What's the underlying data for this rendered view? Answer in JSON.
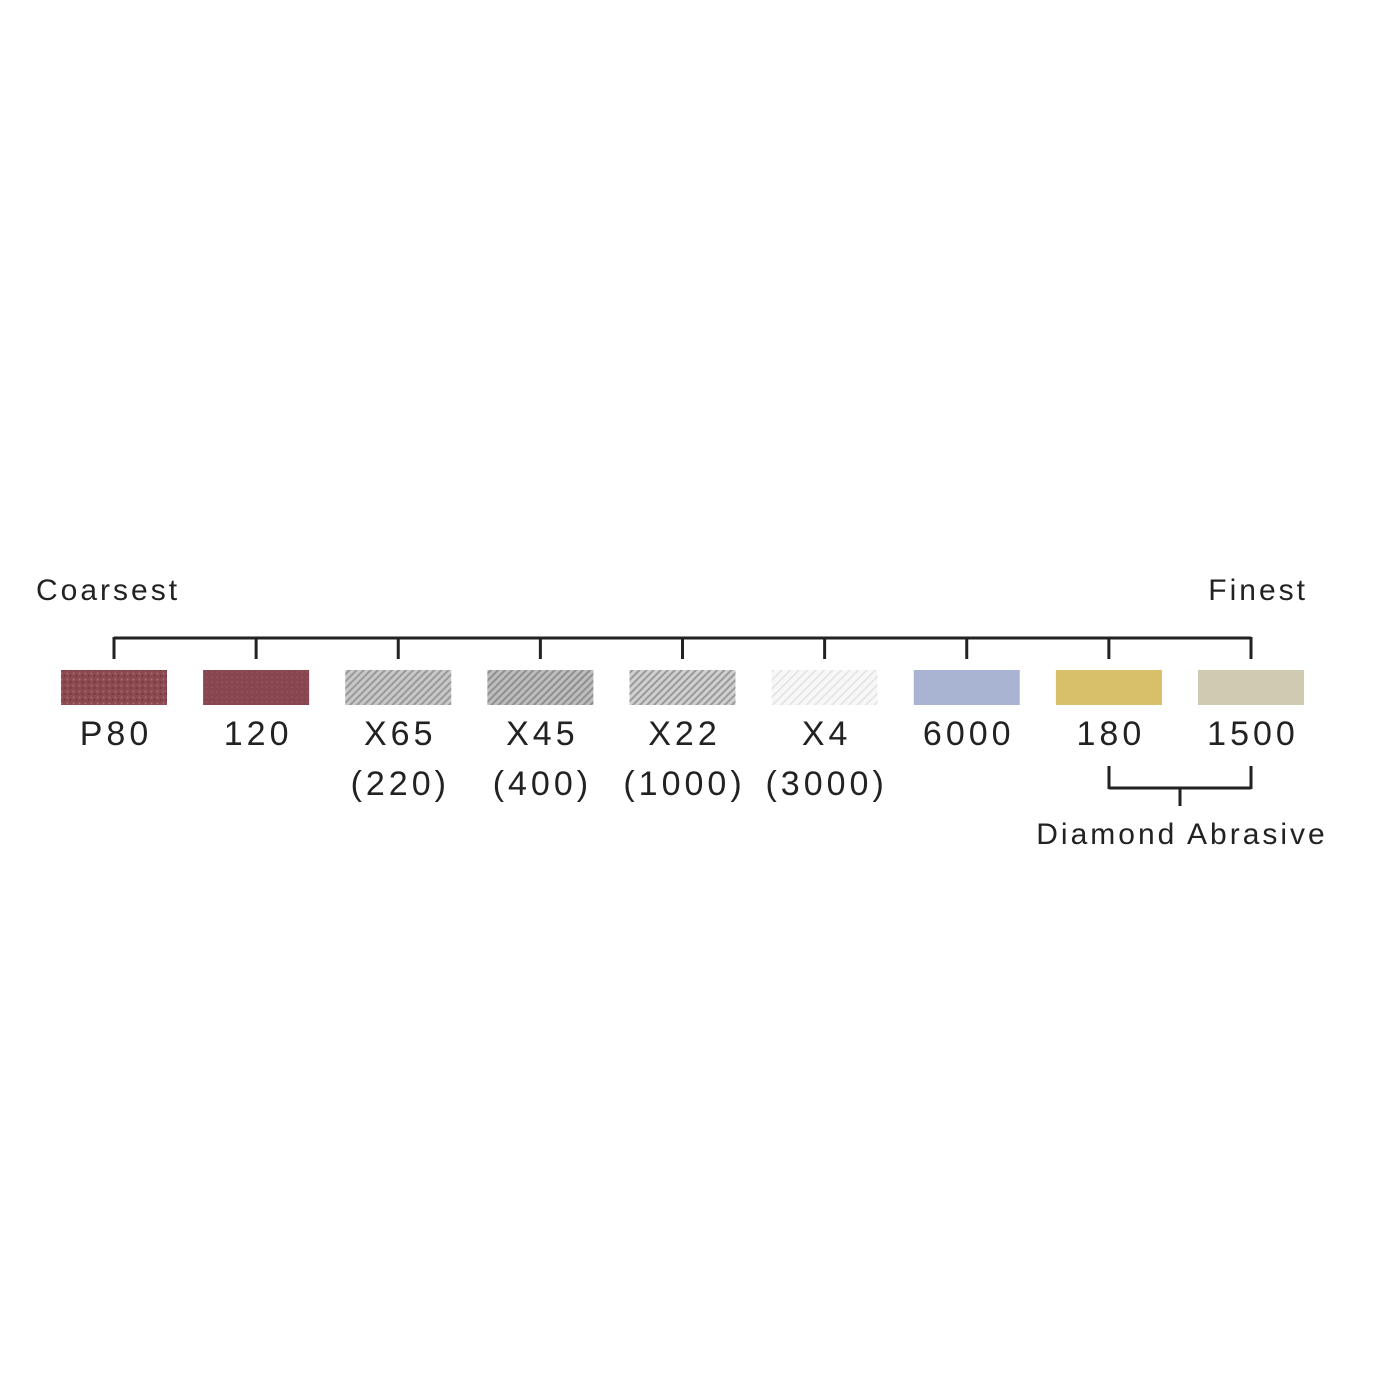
{
  "scale": {
    "start_label": "Coarsest",
    "end_label": "Finest"
  },
  "grits": [
    {
      "label": "P80"
    },
    {
      "label": "120"
    },
    {
      "label": "X65",
      "sub": "(220)"
    },
    {
      "label": "X45",
      "sub": "(400)"
    },
    {
      "label": "X22",
      "sub": "(1000)"
    },
    {
      "label": "X4",
      "sub": "(3000)"
    },
    {
      "label": "6000"
    },
    {
      "label": "180"
    },
    {
      "label": "1500"
    }
  ],
  "group": {
    "label": "Diamond Abrasive"
  }
}
